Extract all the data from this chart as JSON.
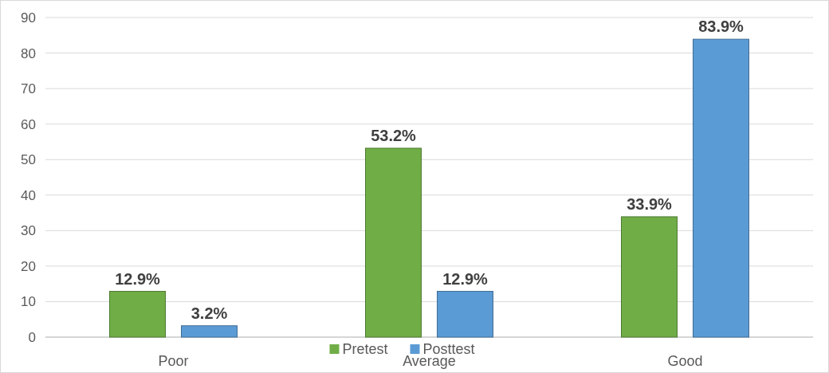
{
  "chart_data": {
    "type": "bar",
    "categories": [
      "Poor",
      "Average",
      "Good"
    ],
    "series": [
      {
        "name": "Pretest",
        "color": "#70ad47",
        "values": [
          12.9,
          53.2,
          33.9
        ],
        "value_labels": [
          "12.9%",
          "53.2%",
          "33.9%"
        ]
      },
      {
        "name": "Posttest",
        "color": "#5b9bd5",
        "values": [
          3.2,
          12.9,
          83.9
        ],
        "value_labels": [
          "3.2%",
          "12.9%",
          "83.9%"
        ]
      }
    ],
    "ylim": [
      0,
      90
    ],
    "yticks": [
      0,
      10,
      20,
      30,
      40,
      50,
      60,
      70,
      80,
      90
    ],
    "grid": "y",
    "legend": "bottom"
  }
}
